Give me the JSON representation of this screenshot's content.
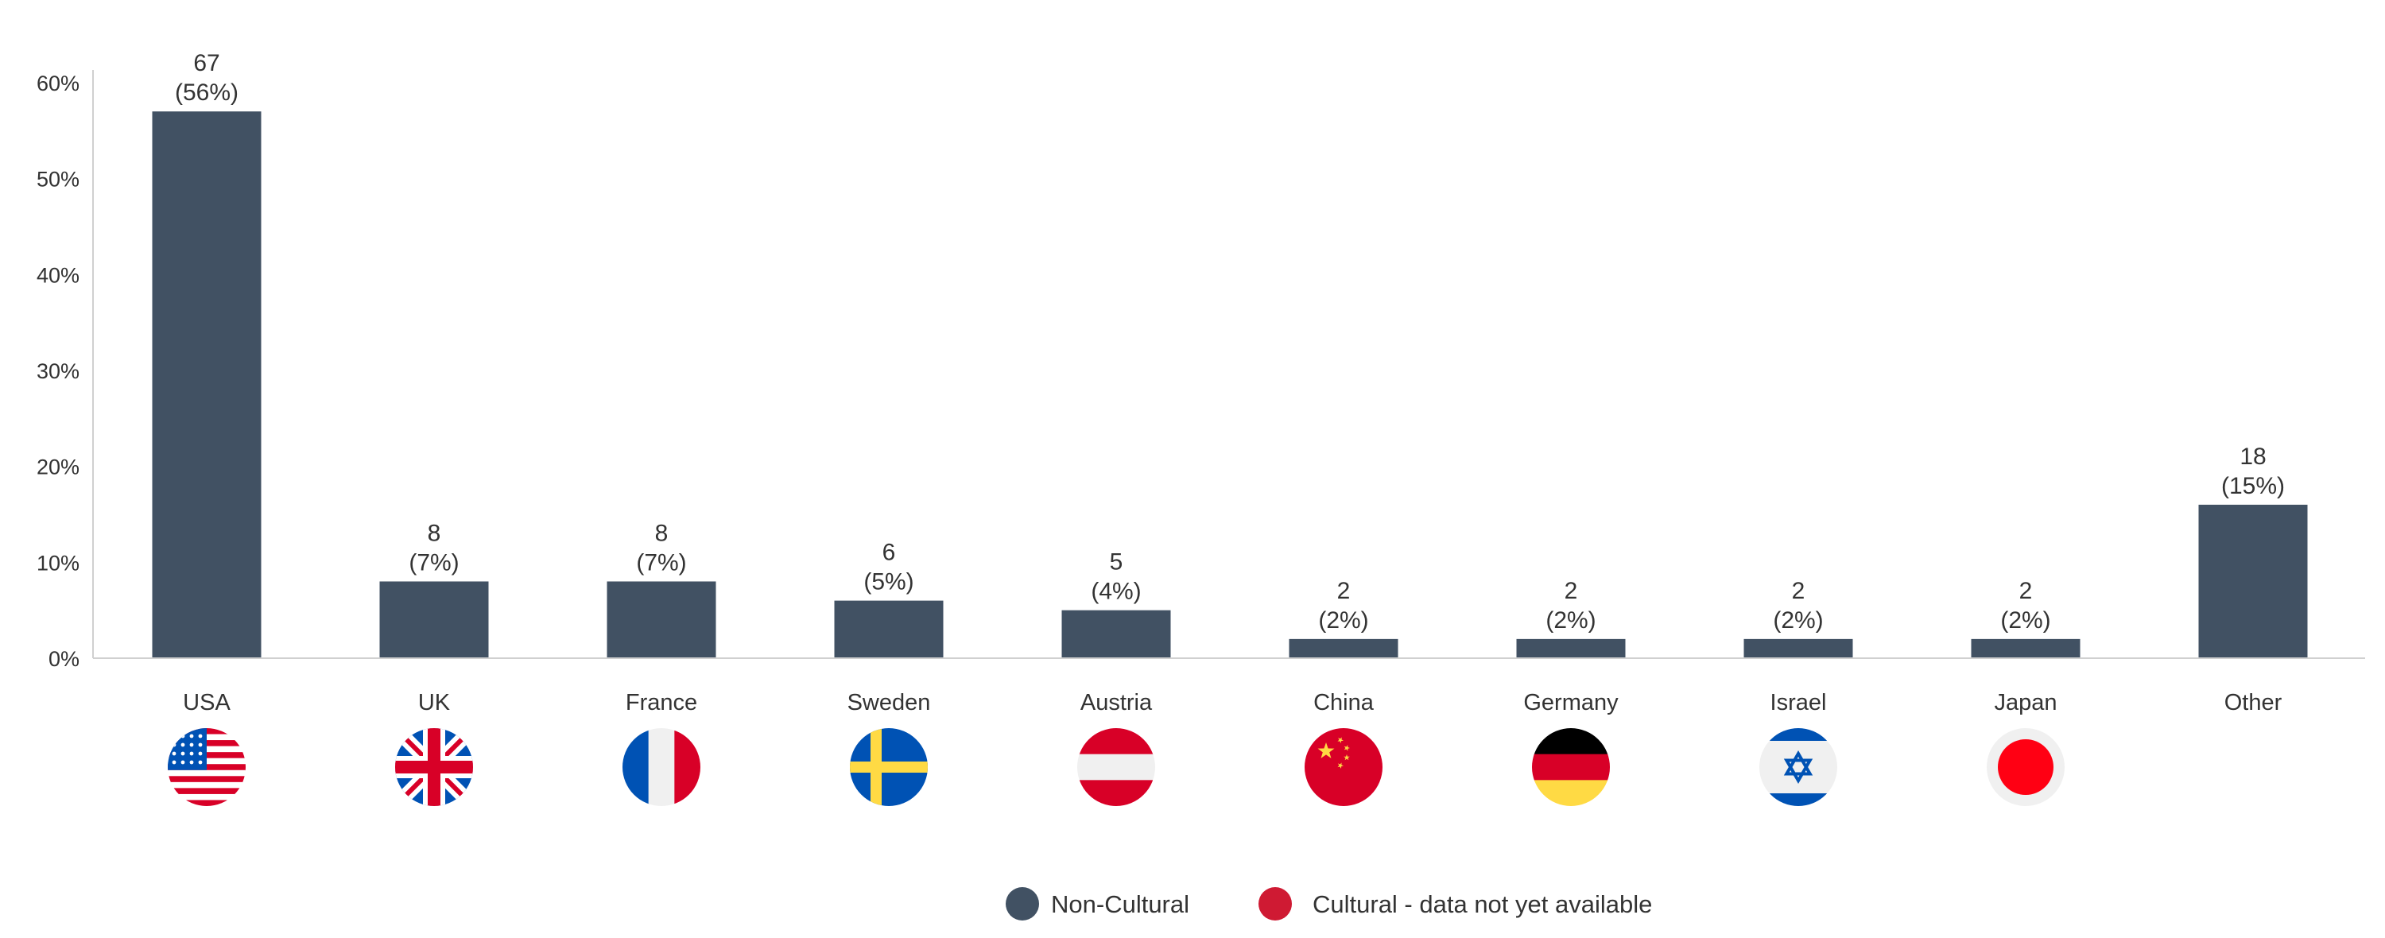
{
  "colors": {
    "bar": "#415163",
    "non_cultural": "#415163",
    "cultural": "#cf1a33",
    "axis": "#d0d0d0",
    "text": "#333333"
  },
  "chart_data": {
    "type": "bar",
    "categories": [
      "USA",
      "UK",
      "France",
      "Sweden",
      "Austria",
      "China",
      "Germany",
      "Israel",
      "Japan",
      "Other"
    ],
    "values": [
      57,
      8,
      8,
      6,
      5,
      2,
      2,
      2,
      2,
      16
    ],
    "value_unit": "%",
    "data_labels": [
      {
        "count": "67",
        "pct": "(56%)"
      },
      {
        "count": "8",
        "pct": "(7%)"
      },
      {
        "count": "8",
        "pct": "(7%)"
      },
      {
        "count": "6",
        "pct": "(5%)"
      },
      {
        "count": "5",
        "pct": "(4%)"
      },
      {
        "count": "2",
        "pct": "(2%)"
      },
      {
        "count": "2",
        "pct": "(2%)"
      },
      {
        "count": "2",
        "pct": "(2%)"
      },
      {
        "count": "2",
        "pct": "(2%)"
      },
      {
        "count": "18",
        "pct": "(15%)"
      }
    ],
    "ylim": [
      0,
      60
    ],
    "yticks": [
      0,
      10,
      20,
      30,
      40,
      50,
      60
    ],
    "ytick_labels": [
      "0%",
      "10%",
      "20%",
      "30%",
      "40%",
      "50%",
      "60%"
    ],
    "grid": false,
    "legend": {
      "placement": "bottom-center",
      "entries": [
        {
          "label": "Non-Cultural",
          "color": "#415163"
        },
        {
          "label": "Cultural - data not yet available",
          "color": "#cf1a33"
        }
      ]
    }
  },
  "flags": [
    {
      "country": "USA",
      "icon": "usa-flag-icon"
    },
    {
      "country": "UK",
      "icon": "uk-flag-icon"
    },
    {
      "country": "France",
      "icon": "france-flag-icon"
    },
    {
      "country": "Sweden",
      "icon": "sweden-flag-icon"
    },
    {
      "country": "Austria",
      "icon": "austria-flag-icon"
    },
    {
      "country": "China",
      "icon": "china-flag-icon"
    },
    {
      "country": "Germany",
      "icon": "germany-flag-icon"
    },
    {
      "country": "Israel",
      "icon": "israel-flag-icon"
    },
    {
      "country": "Japan",
      "icon": "japan-flag-icon"
    },
    {
      "country": "Other",
      "icon": ""
    }
  ]
}
